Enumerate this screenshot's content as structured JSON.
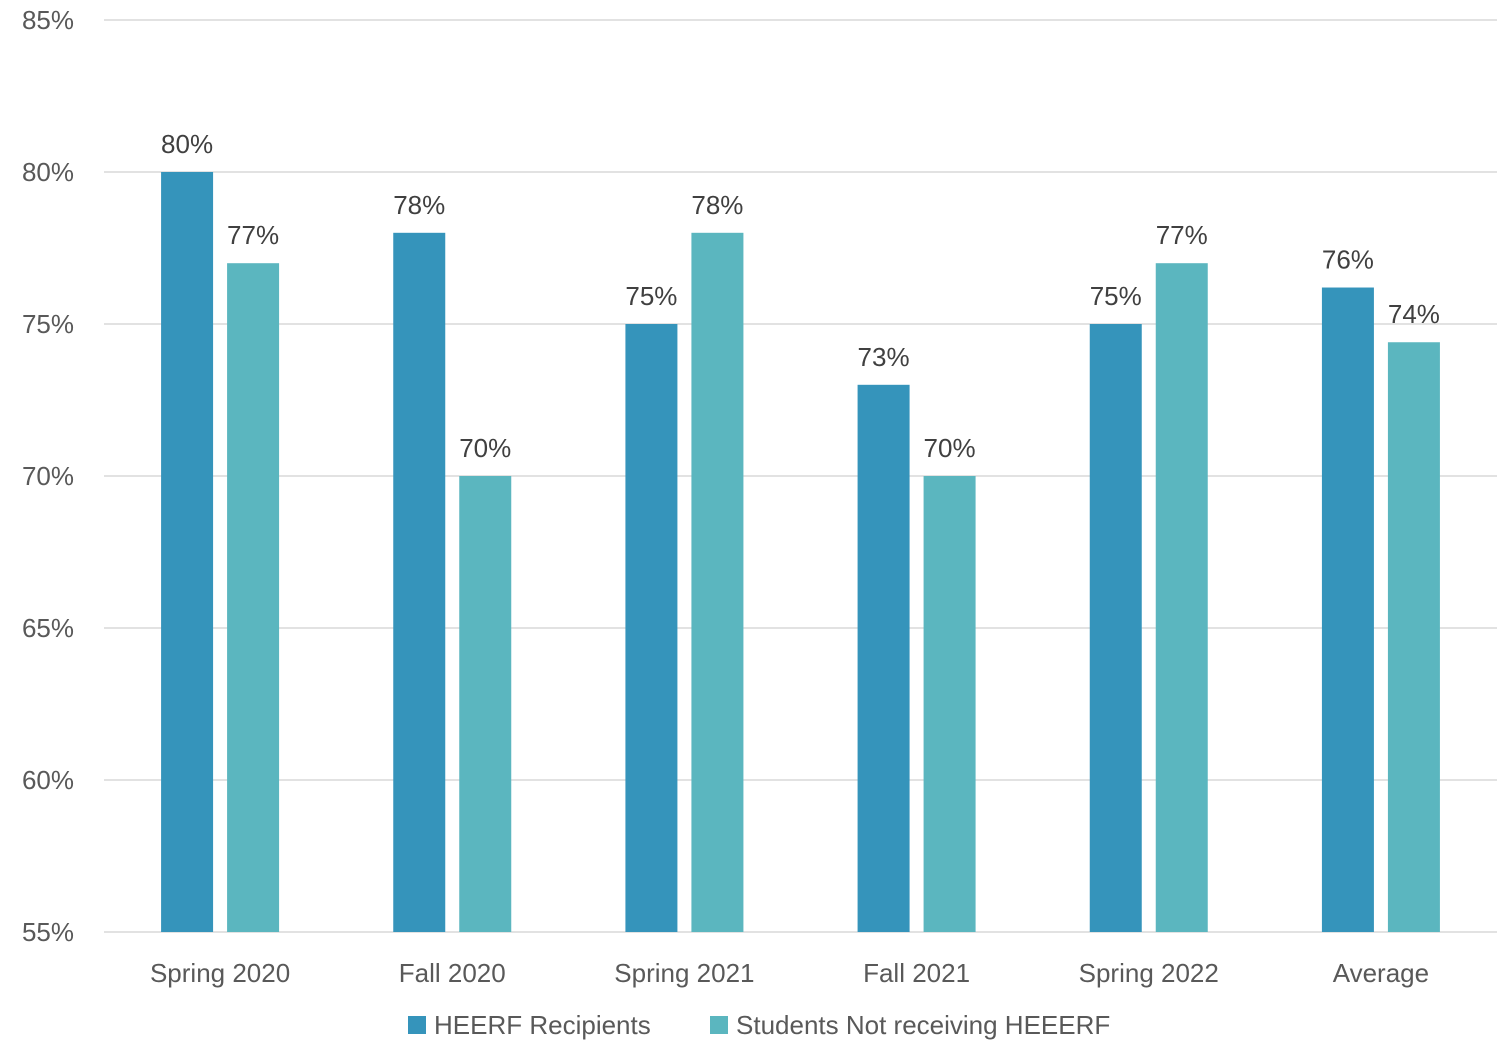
{
  "chart_data": {
    "type": "bar",
    "title": "",
    "xlabel": "",
    "ylabel": "",
    "categories": [
      "Spring 2020",
      "Fall 2020",
      "Spring 2021",
      "Fall 2021",
      "Spring 2022",
      "Average"
    ],
    "series": [
      {
        "name": "HEERF Recipients",
        "color": "#3594bb",
        "values": [
          80,
          78,
          75,
          73,
          75,
          76.2
        ],
        "labels": [
          "80%",
          "78%",
          "75%",
          "73%",
          "75%",
          "76%"
        ]
      },
      {
        "name": "Students Not receiving HEEERF",
        "color": "#5bb6bf",
        "values": [
          77,
          70,
          78,
          70,
          77,
          74.4
        ],
        "labels": [
          "77%",
          "70%",
          "78%",
          "70%",
          "77%",
          "74%"
        ]
      }
    ],
    "ylim": [
      55,
      85
    ],
    "yticks": [
      55,
      60,
      65,
      70,
      75,
      80,
      85
    ],
    "ytick_labels": [
      "55%",
      "60%",
      "65%",
      "70%",
      "75%",
      "80%",
      "85%"
    ],
    "grid": true,
    "legend_position": "bottom-center"
  }
}
